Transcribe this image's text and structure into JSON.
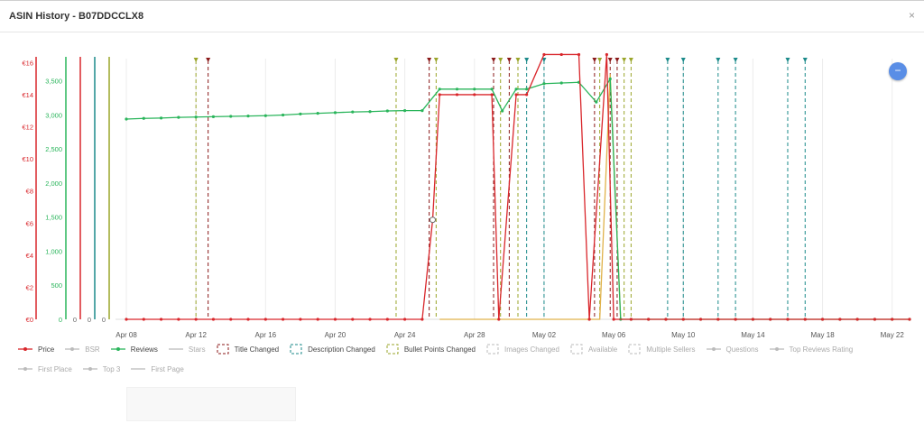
{
  "window": {
    "title": "ASIN History - B07DDCCLX8",
    "close_glyph": "×"
  },
  "fab": {
    "glyph": "−",
    "icon": "minus-icon"
  },
  "colors": {
    "price": "#d9262b",
    "reviews": "#2ab55b",
    "bsr": "#9b59b6",
    "stars": "#e0b24a",
    "title_changed": "#8b1a1a",
    "description_changed": "#1b8a8a",
    "bullet_points_changed": "#9aa52a",
    "grid": "#ececec"
  },
  "chart_data": {
    "type": "line",
    "x": [
      "Apr 08",
      "Apr 09",
      "Apr 10",
      "Apr 11",
      "Apr 12",
      "Apr 13",
      "Apr 14",
      "Apr 15",
      "Apr 16",
      "Apr 17",
      "Apr 18",
      "Apr 19",
      "Apr 20",
      "Apr 21",
      "Apr 22",
      "Apr 23",
      "Apr 24",
      "Apr 25",
      "Apr 26",
      "Apr 27",
      "Apr 28",
      "Apr 29",
      "Apr 30",
      "May 01",
      "May 02",
      "May 03",
      "May 04",
      "May 05",
      "May 06",
      "May 07",
      "May 08",
      "May 09",
      "May 10",
      "May 11",
      "May 12",
      "May 13",
      "May 14",
      "May 15",
      "May 16",
      "May 17",
      "May 18",
      "May 19",
      "May 20",
      "May 21",
      "May 22",
      "May 23"
    ],
    "x_tick_labels": [
      "Apr 08",
      "Apr 12",
      "Apr 16",
      "Apr 20",
      "Apr 24",
      "Apr 28",
      "May 02",
      "May 06",
      "May 10",
      "May 14",
      "May 18",
      "May 22"
    ],
    "price_axis": {
      "ylim": [
        0,
        16
      ],
      "tick_labels": [
        "€0",
        "€2",
        "€4",
        "€6",
        "€8",
        "€10",
        "€12",
        "€14",
        "€16"
      ]
    },
    "reviews_axis": {
      "ylim": [
        0,
        4000
      ],
      "tick_labels": [
        "0",
        "500",
        "1,000",
        "1,500",
        "2,000",
        "2,500",
        "3,000",
        "3,500"
      ]
    },
    "extra_axes": [
      "0",
      "0",
      "0"
    ],
    "series": [
      {
        "name": "Price",
        "points": [
          [
            "Apr 08",
            0
          ],
          [
            "Apr 09",
            0
          ],
          [
            "Apr 10",
            0
          ],
          [
            "Apr 11",
            0
          ],
          [
            "Apr 12",
            0
          ],
          [
            "Apr 13",
            0
          ],
          [
            "Apr 14",
            0
          ],
          [
            "Apr 15",
            0
          ],
          [
            "Apr 16",
            0
          ],
          [
            "Apr 17",
            0
          ],
          [
            "Apr 18",
            0
          ],
          [
            "Apr 19",
            0
          ],
          [
            "Apr 20",
            0
          ],
          [
            "Apr 21",
            0
          ],
          [
            "Apr 22",
            0
          ],
          [
            "Apr 23",
            0
          ],
          [
            "Apr 24",
            0
          ],
          [
            "Apr 25",
            0
          ],
          [
            "Apr 25.6",
            6.2
          ],
          [
            "Apr 26",
            14
          ],
          [
            "Apr 27",
            14
          ],
          [
            "Apr 28",
            14
          ],
          [
            "Apr 29",
            14
          ],
          [
            "Apr 29.4",
            0
          ],
          [
            "Apr 30.4",
            14
          ],
          [
            "May 01",
            14
          ],
          [
            "May 02",
            16.5
          ],
          [
            "May 03",
            16.5
          ],
          [
            "May 04",
            16.5
          ],
          [
            "May 04.6",
            0
          ],
          [
            "May 05.6",
            16.5
          ],
          [
            "May 06",
            0
          ],
          [
            "May 07",
            0
          ],
          [
            "May 08",
            0
          ],
          [
            "May 09",
            0
          ],
          [
            "May 10",
            0
          ],
          [
            "May 11",
            0
          ],
          [
            "May 12",
            0
          ],
          [
            "May 13",
            0
          ],
          [
            "May 14",
            0
          ],
          [
            "May 15",
            0
          ],
          [
            "May 16",
            0
          ],
          [
            "May 17",
            0
          ],
          [
            "May 18",
            0
          ],
          [
            "May 19",
            0
          ],
          [
            "May 20",
            0
          ],
          [
            "May 21",
            0
          ],
          [
            "May 22",
            0
          ],
          [
            "May 23",
            0
          ]
        ]
      },
      {
        "name": "Reviews",
        "points": [
          [
            "Apr 08",
            2940
          ],
          [
            "Apr 09",
            2950
          ],
          [
            "Apr 10",
            2955
          ],
          [
            "Apr 11",
            2965
          ],
          [
            "Apr 12",
            2970
          ],
          [
            "Apr 13",
            2975
          ],
          [
            "Apr 14",
            2980
          ],
          [
            "Apr 15",
            2985
          ],
          [
            "Apr 16",
            2990
          ],
          [
            "Apr 17",
            3000
          ],
          [
            "Apr 18",
            3015
          ],
          [
            "Apr 19",
            3025
          ],
          [
            "Apr 20",
            3035
          ],
          [
            "Apr 21",
            3045
          ],
          [
            "Apr 22",
            3050
          ],
          [
            "Apr 23",
            3060
          ],
          [
            "Apr 24",
            3065
          ],
          [
            "Apr 25",
            3065
          ],
          [
            "Apr 26",
            3380
          ],
          [
            "Apr 27",
            3380
          ],
          [
            "Apr 28",
            3380
          ],
          [
            "Apr 29",
            3380
          ],
          [
            "Apr 29.6",
            3060
          ],
          [
            "Apr 30.4",
            3380
          ],
          [
            "May 01",
            3380
          ],
          [
            "May 02",
            3460
          ],
          [
            "May 03",
            3470
          ],
          [
            "May 04",
            3480
          ],
          [
            "May 05",
            3190
          ],
          [
            "May 05.8",
            3530
          ],
          [
            "May 06.4",
            0
          ],
          [
            "May 07",
            0
          ],
          [
            "May 08",
            0
          ],
          [
            "May 09",
            0
          ],
          [
            "May 10",
            0
          ],
          [
            "May 11",
            0
          ],
          [
            "May 12",
            0
          ],
          [
            "May 13",
            0
          ],
          [
            "May 14",
            0
          ],
          [
            "May 15",
            0
          ],
          [
            "May 16",
            0
          ],
          [
            "May 17",
            0
          ],
          [
            "May 18",
            0
          ],
          [
            "May 19",
            0
          ],
          [
            "May 20",
            0
          ],
          [
            "May 21",
            0
          ],
          [
            "May 22",
            0
          ],
          [
            "May 23",
            0
          ]
        ]
      },
      {
        "name": "Stars",
        "points": [
          [
            "Apr 26",
            0
          ],
          [
            "May 05.2",
            0
          ],
          [
            "May 05.8",
            3600
          ],
          [
            "May 06.4",
            0
          ]
        ]
      }
    ],
    "event_markers": [
      {
        "date": "Apr 12",
        "type": "Bullet Points Changed"
      },
      {
        "date": "Apr 12.7",
        "type": "Title Changed"
      },
      {
        "date": "Apr 23.5",
        "type": "Bullet Points Changed"
      },
      {
        "date": "Apr 25.4",
        "type": "Title Changed"
      },
      {
        "date": "Apr 25.8",
        "type": "Bullet Points Changed"
      },
      {
        "date": "Apr 29.1",
        "type": "Title Changed"
      },
      {
        "date": "Apr 29.5",
        "type": "Bullet Points Changed"
      },
      {
        "date": "Apr 30.0",
        "type": "Title Changed"
      },
      {
        "date": "Apr 30.5",
        "type": "Bullet Points Changed"
      },
      {
        "date": "May 01",
        "type": "Description Changed"
      },
      {
        "date": "May 02",
        "type": "Description Changed"
      },
      {
        "date": "May 04.9",
        "type": "Title Changed"
      },
      {
        "date": "May 05.2",
        "type": "Bullet Points Changed"
      },
      {
        "date": "May 05.8",
        "type": "Title Changed"
      },
      {
        "date": "May 06.2",
        "type": "Title Changed"
      },
      {
        "date": "May 06.6",
        "type": "Bullet Points Changed"
      },
      {
        "date": "May 07",
        "type": "Bullet Points Changed"
      },
      {
        "date": "May 09.1",
        "type": "Description Changed"
      },
      {
        "date": "May 10",
        "type": "Description Changed"
      },
      {
        "date": "May 12",
        "type": "Description Changed"
      },
      {
        "date": "May 13",
        "type": "Description Changed"
      },
      {
        "date": "May 16",
        "type": "Description Changed"
      },
      {
        "date": "May 17",
        "type": "Description Changed"
      }
    ],
    "grid": true,
    "legend_placement": "bottom"
  },
  "legend": [
    {
      "label": "Price",
      "marker": "line-dot",
      "color": "#d9262b",
      "active": true
    },
    {
      "label": "BSR",
      "marker": "line-dot",
      "color": "#9b59b6",
      "active": false
    },
    {
      "label": "Reviews",
      "marker": "line-dot",
      "color": "#2ab55b",
      "active": true
    },
    {
      "label": "Stars",
      "marker": "line",
      "color": "#e0b24a",
      "active": false
    },
    {
      "label": "Title Changed",
      "marker": "box",
      "color": "#8b1a1a",
      "active": true
    },
    {
      "label": "Description Changed",
      "marker": "box",
      "color": "#1b8a8a",
      "active": true
    },
    {
      "label": "Bullet Points Changed",
      "marker": "box",
      "color": "#9aa52a",
      "active": true
    },
    {
      "label": "Images Changed",
      "marker": "box",
      "color": "#bbbbbb",
      "active": false
    },
    {
      "label": "Available",
      "marker": "box",
      "color": "#bbbbbb",
      "active": false
    },
    {
      "label": "Multiple Sellers",
      "marker": "box",
      "color": "#bbbbbb",
      "active": false
    },
    {
      "label": "Questions",
      "marker": "line-dot",
      "color": "#d98cb0",
      "active": false
    },
    {
      "label": "Top Reviews Rating",
      "marker": "line-dot",
      "color": "#b3c46b",
      "active": false
    },
    {
      "label": "First Place",
      "marker": "line-dot",
      "color": "#777777",
      "active": false
    },
    {
      "label": "Top 3",
      "marker": "line-dot",
      "color": "#888888",
      "active": false
    },
    {
      "label": "First Page",
      "marker": "line",
      "color": "#aaaaaa",
      "active": false
    }
  ]
}
